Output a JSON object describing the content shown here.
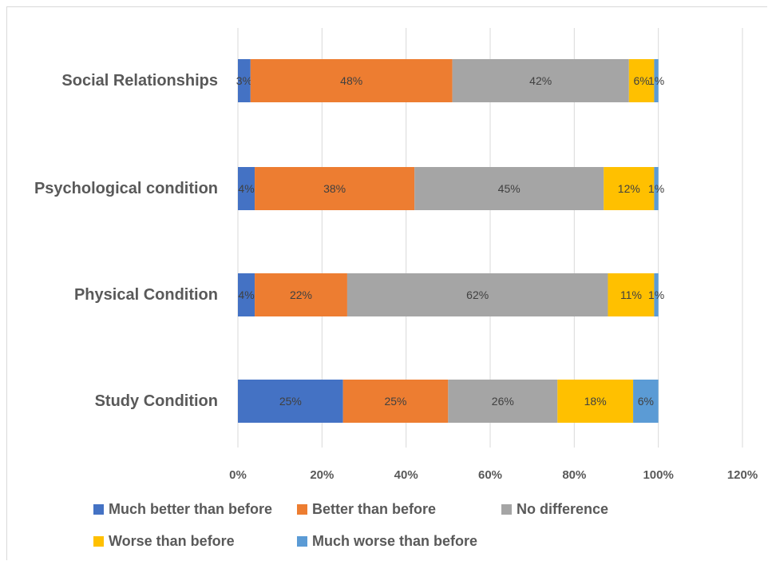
{
  "chart_data": {
    "type": "bar",
    "orientation": "horizontal",
    "stacked": true,
    "categories": [
      "Social Relationships",
      "Psychological condition",
      "Physical Condition",
      "Study Condition"
    ],
    "series": [
      {
        "name": "Much better than before",
        "color": "#4472c4",
        "values": [
          3,
          4,
          4,
          25
        ],
        "labels": [
          "3%",
          "4%",
          "4%",
          "25%"
        ]
      },
      {
        "name": "Better than before",
        "color": "#ed7d31",
        "values": [
          48,
          38,
          22,
          25
        ],
        "labels": [
          "48%",
          "38%",
          "22%",
          "25%"
        ]
      },
      {
        "name": "No difference",
        "color": "#a5a5a5",
        "values": [
          42,
          45,
          62,
          26
        ],
        "labels": [
          "42%",
          "45%",
          "62%",
          "26%"
        ]
      },
      {
        "name": "Worse than before",
        "color": "#ffc000",
        "values": [
          6,
          12,
          11,
          18
        ],
        "labels": [
          "6%",
          "12%",
          "11%",
          "18%"
        ]
      },
      {
        "name": "Much worse than before",
        "color": "#5b9bd5",
        "values": [
          1,
          1,
          1,
          6
        ],
        "labels": [
          "1%",
          "1%",
          "1%",
          "6%"
        ]
      }
    ],
    "xlim": [
      0,
      120
    ],
    "xticks": [
      "0%",
      "20%",
      "40%",
      "60%",
      "80%",
      "100%",
      "120%"
    ],
    "grid": true,
    "legend_position": "bottom"
  }
}
